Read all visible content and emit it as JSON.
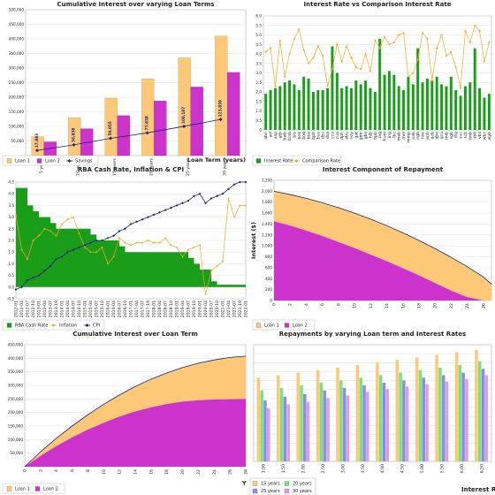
{
  "colors": {
    "loan1": "#fdc877",
    "loan2": "#cc33cc",
    "savings": "#1a237e",
    "interest_green": "#1a9e1a",
    "comparison_orange": "#f5a623",
    "cpi_blue": "#1a237e",
    "y15": "#fdc877",
    "y20": "#7fe07f",
    "y25": "#8c8ce8",
    "y30": "#d9a0d9"
  },
  "chart_data": [
    {
      "type": "bar",
      "title": "Cumulative Interest over varying Loan Terms",
      "xlabel": "Loan Term (years)",
      "categories": [
        "5 years",
        "10 years",
        "15 years",
        "20 years",
        "25 years",
        "30 years"
      ],
      "series": [
        {
          "name": "Loan 1",
          "type": "bar",
          "values": [
            65000,
            130000,
            197000,
            263000,
            335000,
            410000
          ]
        },
        {
          "name": "Loan 2",
          "type": "bar",
          "values": [
            47000,
            92000,
            137000,
            187000,
            235000,
            285000
          ]
        },
        {
          "name": "Savings",
          "type": "line",
          "values": [
            17883,
            36838,
            59055,
            77838,
            100187,
            123839
          ]
        }
      ],
      "data_labels": [
        "17,883",
        "36,838",
        "59,055",
        "77,838",
        "100,187",
        "123,839"
      ],
      "ylim": [
        0,
        500000
      ],
      "yticks": [
        50000,
        100000,
        150000,
        200000,
        250000,
        300000,
        350000,
        400000,
        450000,
        500000
      ],
      "ytick_labels": [
        "50,000",
        "100,000",
        "150,000",
        "200,000",
        "250,000",
        "300,000",
        "350,000",
        "400,000",
        "450,000",
        "500,000"
      ],
      "legend": [
        "Loan 1",
        "Loan 2",
        "Savings"
      ]
    },
    {
      "type": "bar",
      "title": "Interest Rate vs Comparison Interest Rate",
      "categories": [
        "abn",
        "arf",
        "asp",
        "atb",
        "bwb",
        "bcm",
        "bls",
        "bnk",
        "boq",
        "bsa",
        "bpb",
        "bus",
        "cbu",
        "cba",
        "ccu",
        "cua",
        "dph",
        "ebu",
        "ezy",
        "gat",
        "gmr",
        "gbs",
        "hlb",
        "hpb",
        "iag",
        "hum",
        "ing",
        "lbc",
        "mab",
        "mel",
        "mmp",
        "nab",
        "ngb",
        "nse",
        "pnb",
        "qcb",
        "qbe",
        "qcu",
        "rmb",
        "sgb",
        "stg",
        "suc",
        "tcb",
        "tmb",
        "ubk",
        "vbs",
        "wbc",
        "wyb"
      ],
      "series": [
        {
          "name": "Interest Rate",
          "type": "bar",
          "values": [
            1.9,
            2.1,
            2.2,
            2.3,
            2.5,
            2.6,
            2.4,
            2.1,
            2.8,
            2.7,
            2.0,
            2.1,
            2.1,
            2.2,
            4.4,
            3.0,
            2.2,
            2.3,
            2.2,
            2.6,
            2.4,
            2.6,
            2.2,
            2.0,
            4.8,
            2.9,
            3.1,
            2.9,
            2.3,
            2.1,
            2.8,
            2.4,
            4.3,
            2.5,
            2.7,
            2.6,
            2.8,
            2.4,
            2.3,
            2.8,
            2.1,
            1.8,
            2.3,
            2.5,
            4.3,
            2.2,
            1.7,
            1.9
          ]
        },
        {
          "name": "Comparison Rate",
          "type": "line",
          "values": [
            4.1,
            4.3,
            2.3,
            4.7,
            2.8,
            4.0,
            4.8,
            5.3,
            4.2,
            3.5,
            3.8,
            4.4,
            3.9,
            2.3,
            3.2,
            4.5,
            3.6,
            4.4,
            3.8,
            3.3,
            3.2,
            4.0,
            3.1,
            4.7,
            4.3,
            4.9,
            4.5,
            4.6,
            5.0,
            5.1,
            2.8,
            3.0,
            3.7,
            5.1,
            4.8,
            2.6,
            4.3,
            5.0,
            3.9,
            4.1,
            3.3,
            2.2,
            5.2,
            4.6,
            5.5,
            5.2,
            3.6,
            4.6
          ]
        }
      ],
      "ylim": [
        0,
        6
      ],
      "yticks": [
        0,
        0.5,
        1,
        1.5,
        2,
        2.5,
        3,
        3.5,
        4,
        4.5,
        5,
        5.5,
        6
      ],
      "ytick_labels": [
        "0",
        "0.5",
        "1.0",
        "1.5",
        "2.0",
        "2.5",
        "3.0",
        "3.5",
        "4.0",
        "4.5",
        "5.0",
        "5.5",
        "6.0"
      ],
      "legend": [
        "Interest Rate",
        "Comparison Rate"
      ]
    },
    {
      "type": "area",
      "title": "RBA Cash Rate, Inflation & CPI",
      "categories": [
        "2012-01",
        "2012-04",
        "2012-07",
        "2012-10",
        "2013-01",
        "2013-04",
        "2013-07",
        "2013-10",
        "2014-01",
        "2014-04",
        "2014-07",
        "2014-10",
        "2015-01",
        "2015-04",
        "2015-07",
        "2015-10",
        "2016-01",
        "2016-04",
        "2016-07",
        "2016-10",
        "2017-01",
        "2017-04",
        "2017-07",
        "2017-10",
        "2018-01",
        "2018-04",
        "2018-07",
        "2018-10",
        "2019-01",
        "2019-04",
        "2019-07",
        "2019-10",
        "2020-01",
        "2020-04",
        "2020-07",
        "2020-10",
        "2021-01",
        "2021-04",
        "2021-07",
        "2021-10",
        "2022-01"
      ],
      "series": [
        {
          "name": "RBA Cash Rate",
          "type": "area",
          "values": [
            4.25,
            4.25,
            3.5,
            3.25,
            3.0,
            3.0,
            2.75,
            2.5,
            2.5,
            2.5,
            2.5,
            2.5,
            2.5,
            2.25,
            2.0,
            2.0,
            2.0,
            2.0,
            1.75,
            1.5,
            1.5,
            1.5,
            1.5,
            1.5,
            1.5,
            1.5,
            1.5,
            1.5,
            1.5,
            1.5,
            1.25,
            1.0,
            0.75,
            0.75,
            0.25,
            0.1,
            0.1,
            0.1,
            0.1,
            0.1,
            0.1
          ]
        },
        {
          "name": "Inflation",
          "type": "line",
          "values": [
            3.1,
            1.6,
            1.2,
            2.0,
            2.2,
            2.5,
            2.4,
            2.2,
            2.7,
            2.9,
            3.0,
            2.3,
            1.7,
            1.5,
            1.5,
            1.7,
            1.0,
            1.3,
            2.1,
            1.9,
            1.8,
            1.9,
            1.9,
            2.0,
            1.9,
            1.9,
            2.1,
            1.8,
            1.7,
            1.3,
            1.6,
            1.7,
            1.8,
            -0.3,
            0.7,
            0.9,
            1.1,
            3.8,
            3.0,
            3.5,
            3.5
          ]
        },
        {
          "name": "CPI",
          "type": "line",
          "values": [
            -0.1,
            0.0,
            0.3,
            0.4,
            0.5,
            0.7,
            0.9,
            1.2,
            1.3,
            1.5,
            1.6,
            1.7,
            1.8,
            1.9,
            2.0,
            2.0,
            2.1,
            2.2,
            2.4,
            2.5,
            2.7,
            2.8,
            2.9,
            3.0,
            3.1,
            3.2,
            3.3,
            3.4,
            3.5,
            3.6,
            3.7,
            3.9,
            4.0,
            3.6,
            3.8,
            3.9,
            4.0,
            4.2,
            4.4,
            4.5,
            4.5
          ]
        }
      ],
      "ylim": [
        -0.5,
        4.5
      ],
      "yticks": [
        -0.5,
        0,
        0.5,
        1,
        1.5,
        2,
        2.5,
        3,
        3.5,
        4,
        4.5
      ],
      "ytick_labels": [
        "-0.5",
        "0.0",
        "0.5",
        "1.0",
        "1.5",
        "2.0",
        "2.5",
        "3.0",
        "3.5",
        "4.0",
        "4.5"
      ],
      "legend": [
        "RBA Cash Rate",
        "Inflation",
        "CPI"
      ]
    },
    {
      "type": "area",
      "title": "Interest Component of Repayment",
      "ylabel": "Interest ($)",
      "x": [
        0,
        2,
        4,
        6,
        8,
        10,
        12,
        14,
        16,
        18,
        20,
        22,
        24,
        26
      ],
      "series": [
        {
          "name": "Loan 1",
          "type": "area",
          "values": [
            2000,
            1940,
            1870,
            1790,
            1700,
            1600,
            1490,
            1370,
            1240,
            1100,
            950,
            790,
            620,
            430
          ]
        },
        {
          "name": "Loan 2",
          "type": "area",
          "values": [
            1450,
            1370,
            1280,
            1180,
            1070,
            960,
            840,
            720,
            590,
            460,
            320,
            180,
            60,
            0
          ]
        }
      ],
      "ylim": [
        0,
        2200
      ],
      "yticks": [
        0,
        200,
        400,
        600,
        800,
        1000,
        1200,
        1400,
        1600,
        1800,
        2000,
        2200
      ],
      "ytick_labels": [
        "0",
        "200",
        "400",
        "600",
        "800",
        "1,000",
        "1,200",
        "1,400",
        "1,600",
        "1,800",
        "2,000",
        "2,200"
      ],
      "legend": [
        "Loan 1",
        "Loan 2"
      ]
    },
    {
      "type": "area",
      "title": "Cumulative Interest over Loan Term",
      "x": [
        0,
        2,
        4,
        6,
        8,
        10,
        12,
        14,
        16,
        18,
        20,
        22,
        24,
        26,
        28
      ],
      "series": [
        {
          "name": "Loan 1",
          "type": "area",
          "values": [
            0,
            55000,
            105000,
            150000,
            192000,
            230000,
            265000,
            296000,
            323000,
            346000,
            366000,
            382000,
            394000,
            403000,
            408000
          ]
        },
        {
          "name": "Loan 2",
          "type": "area",
          "values": [
            0,
            40000,
            76000,
            108000,
            137000,
            162000,
            185000,
            204000,
            219000,
            231000,
            240000,
            245000,
            248000,
            249000,
            250000
          ]
        }
      ],
      "ylim": [
        0,
        450000
      ],
      "yticks": [
        50000,
        100000,
        150000,
        200000,
        250000,
        300000,
        350000,
        400000,
        450000
      ],
      "ytick_labels": [
        "50,000",
        "100,000",
        "150,000",
        "200,000",
        "250,000",
        "300,000",
        "350,000",
        "400,000",
        "450,000"
      ],
      "legend": [
        "Loan 1",
        "Loan 2"
      ]
    },
    {
      "type": "bar",
      "title": "Repayments by varying Loan term and Interest Rates",
      "categories": [
        "1.00",
        "1.50",
        "2.00",
        "2.50",
        "3.00",
        "3.50",
        "4.00",
        "4.50",
        "5.00",
        "5.50",
        "6.00",
        "6.50"
      ],
      "series": [
        {
          "name": "15 years",
          "values": [
            3300,
            3400,
            3500,
            3600,
            3700,
            3800,
            3900,
            4000,
            4100,
            4200,
            4300,
            4400
          ]
        },
        {
          "name": "20 years",
          "values": [
            2800,
            2900,
            3000,
            3100,
            3200,
            3300,
            3400,
            3500,
            3600,
            3700,
            3800,
            3950
          ]
        },
        {
          "name": "25 years",
          "values": [
            2400,
            2550,
            2650,
            2800,
            2900,
            3000,
            3100,
            3200,
            3300,
            3400,
            3500,
            3650
          ]
        },
        {
          "name": "30 years",
          "values": [
            2100,
            2250,
            2350,
            2500,
            2600,
            2750,
            2850,
            2950,
            3050,
            3150,
            3250,
            3400
          ]
        }
      ],
      "ylim": [
        0,
        4600
      ],
      "legend_prefix": "Y",
      "legend": [
        "15 years",
        "20 years",
        "25 years",
        "30 years"
      ],
      "partial_title": "Interest R"
    }
  ]
}
